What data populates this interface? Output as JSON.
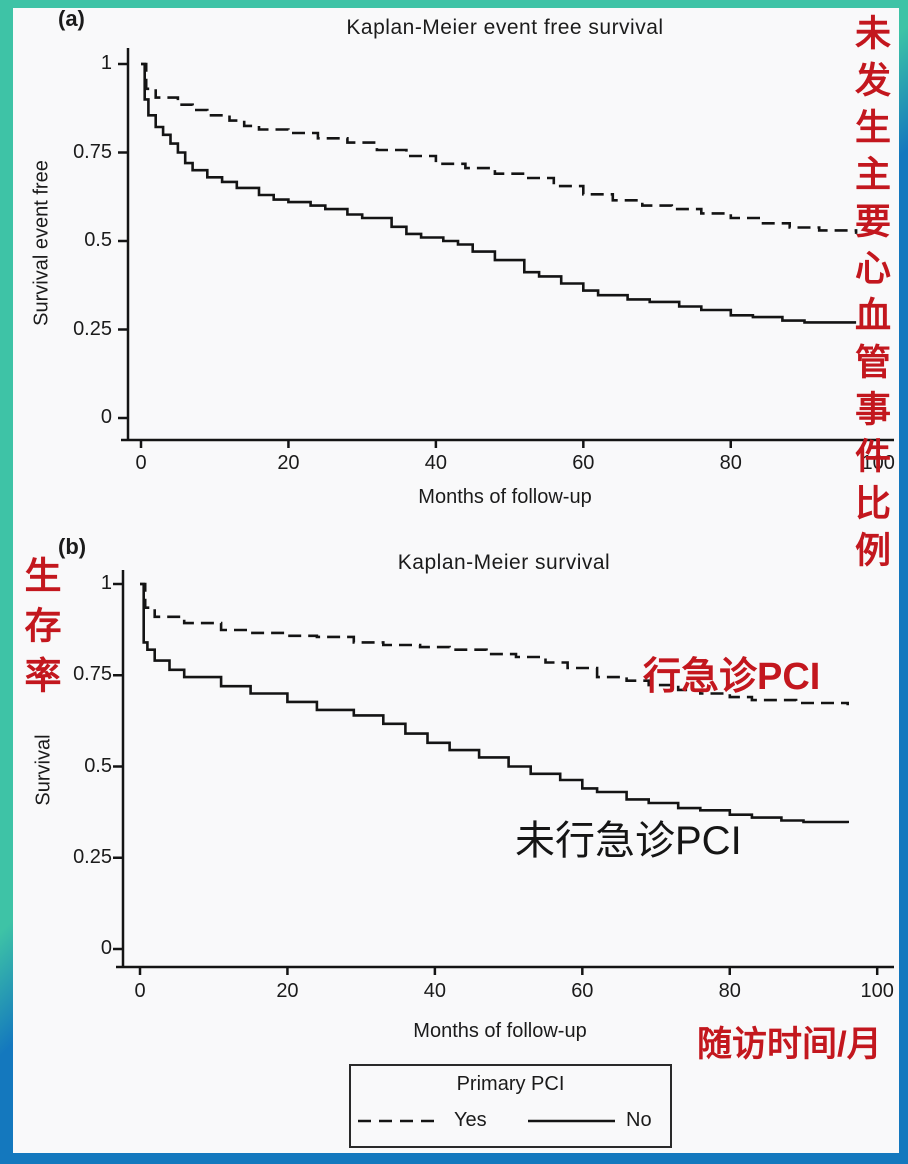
{
  "colors": {
    "frame_teal": "#3EC3A6",
    "frame_blue": "#1478BE",
    "background": "#F9F9FA",
    "annotation_red": "#C3171E",
    "curve_ink": "#141414"
  },
  "panel_a": {
    "label": "(a)",
    "title": "Kaplan-Meier event free survival",
    "ylabel": "Survival event free",
    "xlabel": "Months of follow-up",
    "ytick_labels": [
      "1",
      "0.75",
      "0.5",
      "0.25",
      "0"
    ],
    "xtick_labels": [
      "0",
      "20",
      "40",
      "60",
      "80",
      "100"
    ]
  },
  "panel_b": {
    "label": "(b)",
    "title": "Kaplan-Meier survival",
    "ylabel": "Survival",
    "xlabel": "Months of follow-up",
    "ytick_labels": [
      "1",
      "0.75",
      "0.5",
      "0.25",
      "0"
    ],
    "xtick_labels": [
      "0",
      "20",
      "40",
      "60",
      "80",
      "100"
    ]
  },
  "annotations": {
    "right_vertical_cn": "未发生主要心血管事件比例",
    "left_vertical_cn": "生存率",
    "xaxis_cn": "随访时间/月",
    "pci_yes_cn": "行急诊PCI",
    "pci_no_cn": "未行急诊PCI"
  },
  "legend": {
    "title": "Primary PCI",
    "yes_label": "Yes",
    "no_label": "No"
  },
  "chart_data": [
    {
      "type": "line",
      "step": true,
      "title": "Kaplan-Meier event free survival",
      "xlabel": "Months of follow-up",
      "ylabel": "Survival event free",
      "xlim": [
        0,
        100
      ],
      "ylim": [
        0,
        1
      ],
      "xtick_values": [
        0,
        20,
        40,
        60,
        80,
        100
      ],
      "ytick_values": [
        1,
        0.75,
        0.5,
        0.25,
        0
      ],
      "grid": false,
      "legend_position": "bottom",
      "series": [
        {
          "name": "Primary PCI: Yes",
          "style": "dashed",
          "points": [
            [
              0,
              1
            ],
            [
              0.7,
              0.93
            ],
            [
              2,
              0.905
            ],
            [
              5,
              0.885
            ],
            [
              7,
              0.87
            ],
            [
              9,
              0.855
            ],
            [
              12,
              0.84
            ],
            [
              14,
              0.825
            ],
            [
              16,
              0.815
            ],
            [
              20,
              0.805
            ],
            [
              24,
              0.79
            ],
            [
              28,
              0.778
            ],
            [
              32,
              0.757
            ],
            [
              36,
              0.74
            ],
            [
              40,
              0.718
            ],
            [
              44,
              0.706
            ],
            [
              48,
              0.69
            ],
            [
              52,
              0.678
            ],
            [
              56,
              0.655
            ],
            [
              60,
              0.632
            ],
            [
              64,
              0.615
            ],
            [
              68,
              0.6
            ],
            [
              72,
              0.59
            ],
            [
              76,
              0.578
            ],
            [
              80,
              0.565
            ],
            [
              84,
              0.55
            ],
            [
              88,
              0.538
            ],
            [
              92,
              0.53
            ],
            [
              97,
              0.52
            ]
          ]
        },
        {
          "name": "Primary PCI: No",
          "style": "solid",
          "points": [
            [
              0,
              1
            ],
            [
              0.5,
              0.9
            ],
            [
              1,
              0.855
            ],
            [
              2,
              0.822
            ],
            [
              3,
              0.8
            ],
            [
              4,
              0.775
            ],
            [
              5,
              0.75
            ],
            [
              6,
              0.72
            ],
            [
              7,
              0.7
            ],
            [
              9,
              0.68
            ],
            [
              11,
              0.667
            ],
            [
              13,
              0.65
            ],
            [
              16,
              0.63
            ],
            [
              18,
              0.617
            ],
            [
              20,
              0.61
            ],
            [
              23,
              0.6
            ],
            [
              25,
              0.59
            ],
            [
              28,
              0.575
            ],
            [
              30,
              0.565
            ],
            [
              34,
              0.54
            ],
            [
              36,
              0.52
            ],
            [
              38,
              0.51
            ],
            [
              41,
              0.5
            ],
            [
              43,
              0.49
            ],
            [
              45,
              0.47
            ],
            [
              48,
              0.446
            ],
            [
              52,
              0.412
            ],
            [
              54,
              0.4
            ],
            [
              57,
              0.38
            ],
            [
              60,
              0.36
            ],
            [
              62,
              0.347
            ],
            [
              66,
              0.335
            ],
            [
              69,
              0.328
            ],
            [
              73,
              0.315
            ],
            [
              76,
              0.305
            ],
            [
              80,
              0.29
            ],
            [
              83,
              0.285
            ],
            [
              87,
              0.275
            ],
            [
              90,
              0.27
            ],
            [
              97,
              0.27
            ]
          ]
        }
      ]
    },
    {
      "type": "line",
      "step": true,
      "title": "Kaplan-Meier survival",
      "xlabel": "Months of follow-up",
      "ylabel": "Survival",
      "xlim": [
        0,
        100
      ],
      "ylim": [
        0,
        1
      ],
      "xtick_values": [
        0,
        20,
        40,
        60,
        80,
        100
      ],
      "ytick_values": [
        1,
        0.75,
        0.5,
        0.25,
        0
      ],
      "grid": false,
      "legend_position": "bottom",
      "series": [
        {
          "name": "Primary PCI: Yes",
          "style": "dashed",
          "points": [
            [
              0,
              1
            ],
            [
              0.7,
              0.935
            ],
            [
              2,
              0.91
            ],
            [
              6,
              0.893
            ],
            [
              11,
              0.874
            ],
            [
              15,
              0.866
            ],
            [
              20,
              0.858
            ],
            [
              24,
              0.855
            ],
            [
              29,
              0.84
            ],
            [
              33,
              0.833
            ],
            [
              38,
              0.827
            ],
            [
              42,
              0.82
            ],
            [
              47,
              0.808
            ],
            [
              51,
              0.8
            ],
            [
              55,
              0.785
            ],
            [
              58,
              0.77
            ],
            [
              62,
              0.745
            ],
            [
              66,
              0.735
            ],
            [
              69,
              0.723
            ],
            [
              73,
              0.71
            ],
            [
              76,
              0.7
            ],
            [
              80,
              0.69
            ],
            [
              83,
              0.682
            ],
            [
              89,
              0.674
            ],
            [
              96,
              0.668
            ]
          ]
        },
        {
          "name": "Primary PCI: No",
          "style": "solid",
          "points": [
            [
              0,
              1
            ],
            [
              0.5,
              0.84
            ],
            [
              1,
              0.82
            ],
            [
              2,
              0.79
            ],
            [
              4,
              0.765
            ],
            [
              6,
              0.745
            ],
            [
              11,
              0.72
            ],
            [
              15,
              0.7
            ],
            [
              20,
              0.677
            ],
            [
              24,
              0.655
            ],
            [
              29,
              0.64
            ],
            [
              33,
              0.617
            ],
            [
              36,
              0.59
            ],
            [
              39,
              0.565
            ],
            [
              42,
              0.545
            ],
            [
              46,
              0.525
            ],
            [
              50,
              0.5
            ],
            [
              53,
              0.48
            ],
            [
              57,
              0.463
            ],
            [
              60,
              0.44
            ],
            [
              62,
              0.43
            ],
            [
              66,
              0.41
            ],
            [
              69,
              0.4
            ],
            [
              73,
              0.386
            ],
            [
              76,
              0.38
            ],
            [
              80,
              0.368
            ],
            [
              83,
              0.36
            ],
            [
              87,
              0.352
            ],
            [
              90,
              0.348
            ],
            [
              96,
              0.345
            ]
          ]
        }
      ]
    }
  ]
}
